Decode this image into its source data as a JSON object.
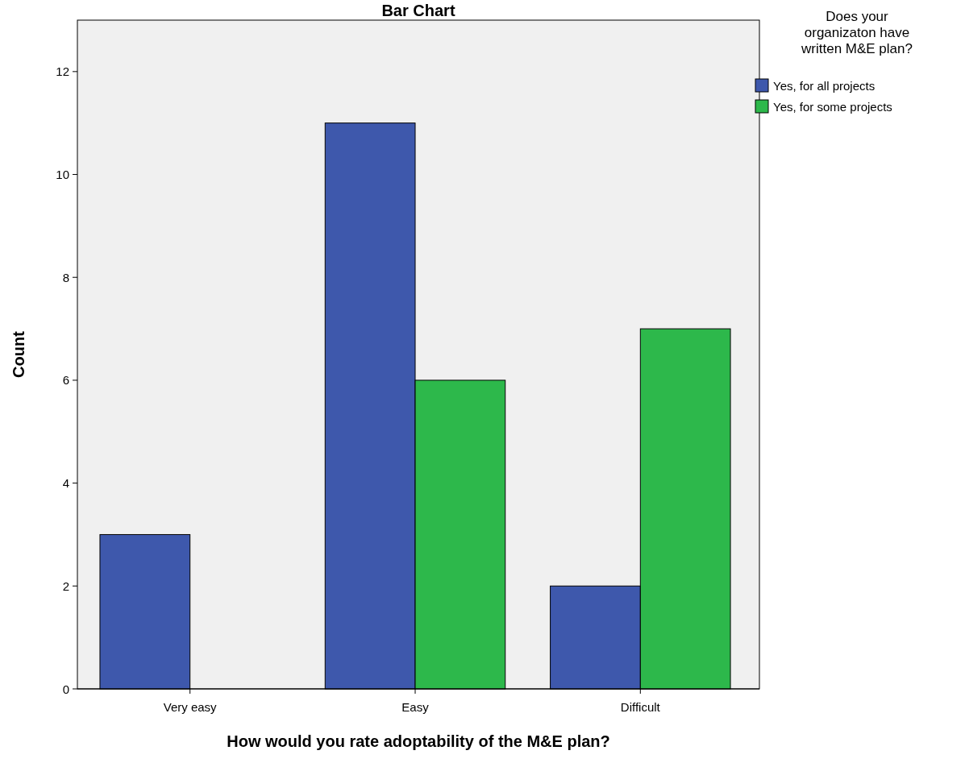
{
  "chart_data": {
    "type": "bar",
    "title": "Bar Chart",
    "xlabel": "How would you rate adoptability of the M&E plan?",
    "ylabel": "Count",
    "legend_title": "Does your organizaton have written M&E plan?",
    "categories": [
      "Very easy",
      "Easy",
      "Difficult"
    ],
    "series": [
      {
        "name": "Yes, for all projects",
        "color": "#3e58ac",
        "values": [
          3,
          11,
          2
        ]
      },
      {
        "name": "Yes, for some projects",
        "color": "#2db84b",
        "values": [
          0,
          6,
          7
        ]
      }
    ],
    "ylim": [
      0,
      13
    ],
    "yticks": [
      0,
      2,
      4,
      6,
      8,
      10,
      12
    ],
    "grid": false,
    "legend": "right"
  }
}
